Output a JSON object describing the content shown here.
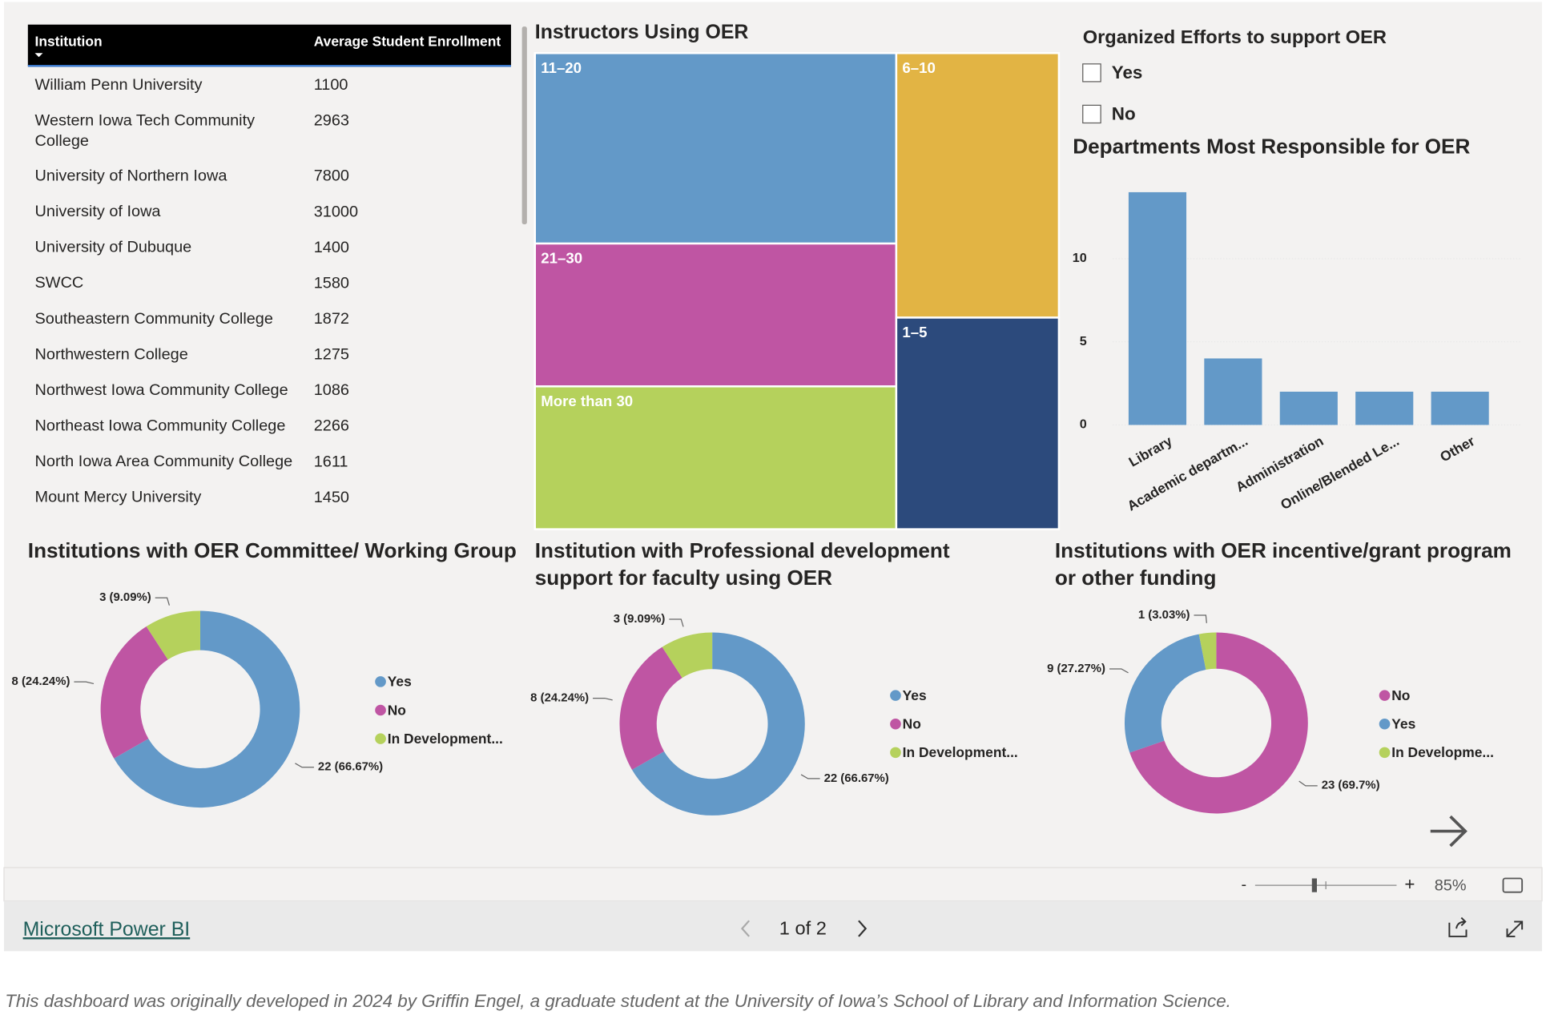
{
  "table": {
    "columns": [
      "Institution",
      "Average Student Enrollment"
    ],
    "rows": [
      [
        "William Penn University",
        1100
      ],
      [
        "Western Iowa Tech Community College",
        2963
      ],
      [
        "University of Northern Iowa",
        7800
      ],
      [
        "University of Iowa",
        31000
      ],
      [
        "University of Dubuque",
        1400
      ],
      [
        "SWCC",
        1580
      ],
      [
        "Southeastern Community College",
        1872
      ],
      [
        "Northwestern College",
        1275
      ],
      [
        "Northwest Iowa Community College",
        1086
      ],
      [
        "Northeast Iowa Community College",
        2266
      ],
      [
        "North Iowa Area Community College",
        1611
      ],
      [
        "Mount Mercy University",
        1450
      ]
    ]
  },
  "slicer": {
    "title": "Organized Efforts to support OER",
    "options": [
      "Yes",
      "No"
    ]
  },
  "chart_data": [
    {
      "type": "treemap",
      "title": "Instructors Using OER",
      "categories": [
        "11–20",
        "21–30",
        "More than 30",
        "6–10",
        "1–5"
      ],
      "values": [
        8,
        6,
        6,
        5,
        4
      ],
      "colors": [
        "#6399c8",
        "#bf55a3",
        "#b5d15c",
        "#e2b444",
        "#2c4a7c"
      ]
    },
    {
      "type": "bar",
      "title": "Departments Most Responsible for OER",
      "categories": [
        "Library",
        "Academic departm...",
        "Administration",
        "Online/Blended Le...",
        "Other"
      ],
      "values": [
        14,
        4,
        2,
        2,
        2
      ],
      "color": "#6399c8",
      "ylim": [
        0,
        15
      ],
      "yticks": [
        0,
        5,
        10
      ],
      "grid": true
    },
    {
      "type": "pie",
      "donut": true,
      "title": "Institutions with OER Committee/ Working Group",
      "categories": [
        "Yes",
        "No",
        "In Development..."
      ],
      "values": [
        22,
        8,
        3
      ],
      "value_labels": [
        "22 (66.67%)",
        "8 (24.24%)",
        "3 (9.09%)"
      ],
      "colors": [
        "#6399c8",
        "#bf55a3",
        "#b5d15c"
      ]
    },
    {
      "type": "pie",
      "donut": true,
      "title": "Institution with Professional development support for faculty using OER",
      "categories": [
        "Yes",
        "No",
        "In Development..."
      ],
      "values": [
        22,
        8,
        3
      ],
      "value_labels": [
        "22 (66.67%)",
        "8 (24.24%)",
        "3 (9.09%)"
      ],
      "colors": [
        "#6399c8",
        "#bf55a3",
        "#b5d15c"
      ]
    },
    {
      "type": "pie",
      "donut": true,
      "title": "Institutions with OER incentive/grant program or other funding",
      "categories": [
        "No",
        "Yes",
        "In Developme..."
      ],
      "values": [
        23,
        9,
        1
      ],
      "value_labels": [
        "23 (69.7%)",
        "9 (27.27%)",
        "1 (3.03%)"
      ],
      "colors": [
        "#bf55a3",
        "#6399c8",
        "#b5d15c"
      ]
    }
  ],
  "footer": {
    "brand": "Microsoft Power BI",
    "page": "1 of 2",
    "zoom": "85%"
  },
  "caption": "This dashboard was originally developed in 2024 by Griffin Engel, a graduate student at the University of Iowa’s School of Library and Information Science."
}
